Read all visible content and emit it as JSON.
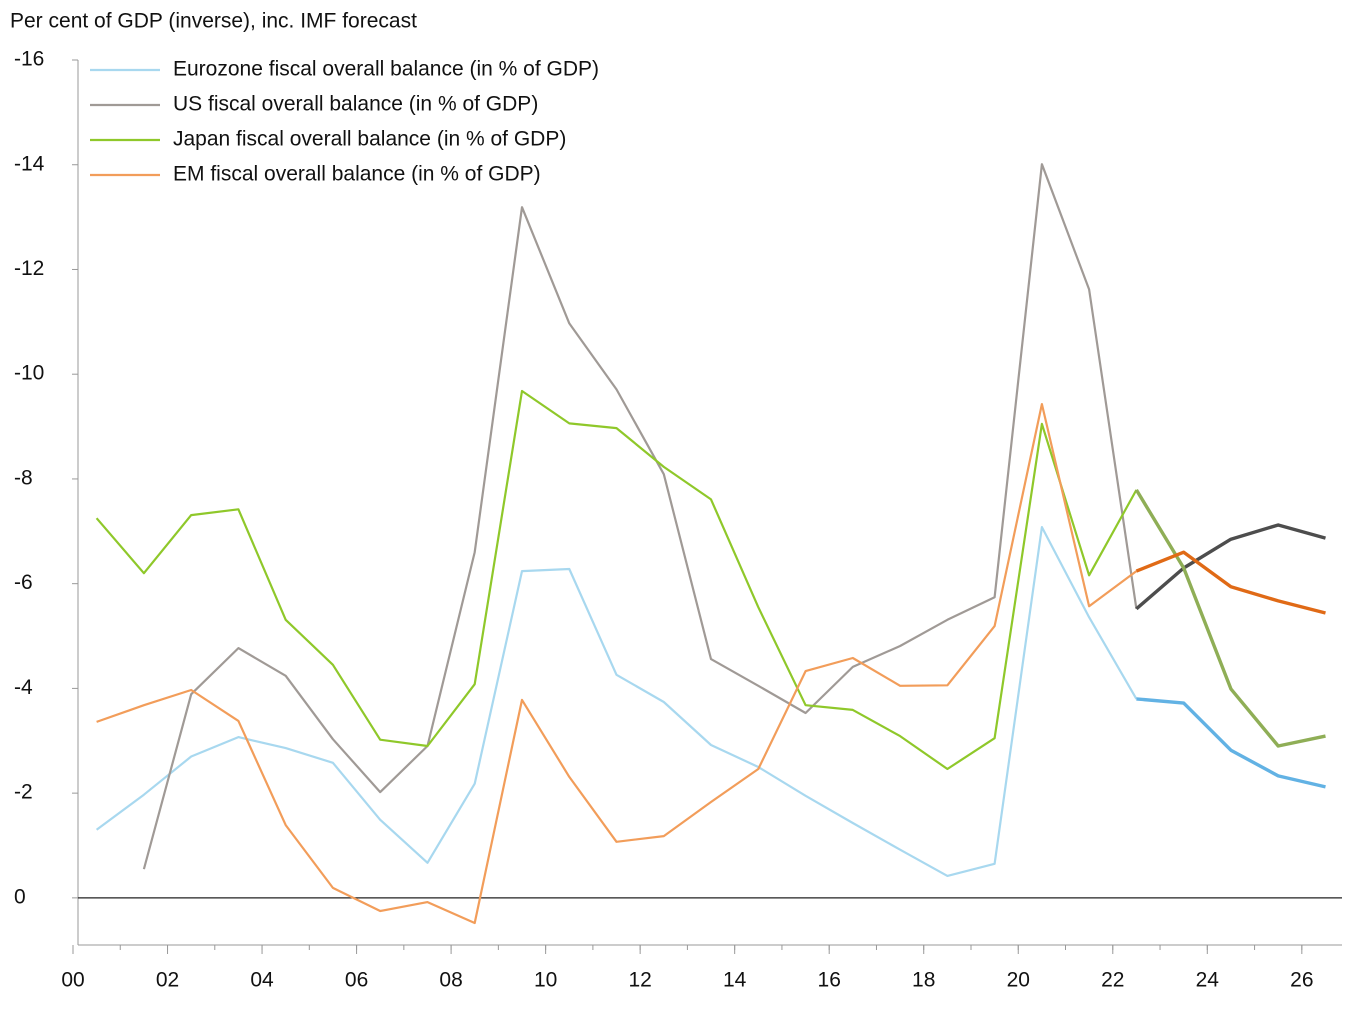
{
  "chart_data": {
    "type": "line",
    "title": "Per cent of GDP (inverse), inc. IMF forecast",
    "x": [
      2000.5,
      2001.5,
      2002.5,
      2003.5,
      2004.5,
      2005.5,
      2006.5,
      2007.5,
      2008.5,
      2009.5,
      2010.5,
      2011.5,
      2012.5,
      2013.5,
      2014.5,
      2015.5,
      2016.5,
      2017.5,
      2018.5,
      2019.5,
      2020.5,
      2021.5,
      2022.5,
      2023.5,
      2024.5,
      2025.5,
      2026.5
    ],
    "series": [
      {
        "name": "Eurozone fiscal overall balance (in % of GDP)",
        "color": "#a8d8ef",
        "forecast_color": "#62b2e4",
        "values": [
          -1.3,
          -1.97,
          -2.7,
          -3.07,
          -2.86,
          -2.58,
          -1.49,
          -0.67,
          -2.18,
          -6.24,
          -6.28,
          -4.26,
          -3.74,
          -2.92,
          -2.5,
          -1.95,
          -1.43,
          -0.92,
          -0.42,
          -0.65,
          -7.08,
          -5.36,
          -3.8,
          -3.72,
          -2.82,
          -2.33,
          -2.12
        ]
      },
      {
        "name": "US fiscal overall balance (in % of GDP)",
        "color": "#a09a96",
        "forecast_color": "#4d4d4d",
        "values": [
          null,
          -0.55,
          -3.89,
          -4.77,
          -4.24,
          -3.03,
          -2.02,
          -2.9,
          -6.6,
          -13.19,
          -10.97,
          -9.71,
          -8.09,
          -4.56,
          -4.05,
          -3.53,
          -4.41,
          -4.81,
          -5.31,
          -5.74,
          -14.01,
          -11.62,
          -5.52,
          -6.3,
          -6.85,
          -7.12,
          -6.87
        ]
      },
      {
        "name": "Japan fiscal overall balance (in % of GDP)",
        "color": "#8fc82a",
        "forecast_color": "#8fae56",
        "values": [
          -7.25,
          -6.2,
          -7.31,
          -7.42,
          -5.31,
          -4.45,
          -3.02,
          -2.9,
          -4.08,
          -9.68,
          -9.06,
          -8.97,
          -8.23,
          -7.61,
          -5.55,
          -3.68,
          -3.59,
          -3.09,
          -2.46,
          -3.05,
          -9.05,
          -6.16,
          -7.79,
          -6.3,
          -3.99,
          -2.9,
          -3.09
        ]
      },
      {
        "name": "EM fiscal overall balance (in % of GDP)",
        "color": "#f29d5a",
        "forecast_color": "#e06a16",
        "values": [
          -3.36,
          -3.68,
          -3.97,
          -3.38,
          -1.39,
          -0.19,
          0.25,
          0.08,
          0.48,
          -3.78,
          -2.31,
          -1.07,
          -1.18,
          -1.83,
          -2.46,
          -4.33,
          -4.58,
          -4.05,
          -4.06,
          -5.19,
          -9.43,
          -5.57,
          -6.24,
          -6.6,
          -5.94,
          -5.67,
          -5.44
        ]
      }
    ],
    "forecast_from_index": 22,
    "xlim": [
      2000,
      2026.85
    ],
    "xticks": [
      {
        "value": 2000,
        "label": "00"
      },
      {
        "value": 2002,
        "label": "02"
      },
      {
        "value": 2004,
        "label": "04"
      },
      {
        "value": 2006,
        "label": "06"
      },
      {
        "value": 2008,
        "label": "08"
      },
      {
        "value": 2010,
        "label": "10"
      },
      {
        "value": 2012,
        "label": "12"
      },
      {
        "value": 2014,
        "label": "14"
      },
      {
        "value": 2016,
        "label": "16"
      },
      {
        "value": 2018,
        "label": "18"
      },
      {
        "value": 2020,
        "label": "20"
      },
      {
        "value": 2022,
        "label": "22"
      },
      {
        "value": 2024,
        "label": "24"
      },
      {
        "value": 2026,
        "label": "26"
      }
    ],
    "ylim": [
      -16,
      0.9
    ],
    "y_inverted": true,
    "yticks": [
      -16,
      -14,
      -12,
      -10,
      -8,
      -6,
      -4,
      -2,
      0
    ],
    "legend": "upper left"
  }
}
